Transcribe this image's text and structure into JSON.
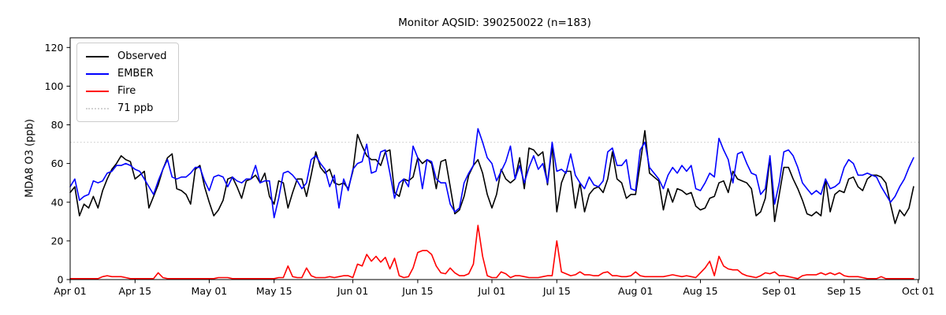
{
  "figure": {
    "title": "Monitor AQSID: 390250022 (n=183)",
    "ylabel": "MDA8 O3 (ppb)"
  },
  "chart_data": {
    "type": "line",
    "title": "Monitor AQSID: 390250022 (n=183)",
    "xlabel": "",
    "ylabel": "MDA8 O3 (ppb)",
    "ylim": [
      0,
      125
    ],
    "yticks": [
      0,
      20,
      40,
      60,
      80,
      100,
      120
    ],
    "grid": false,
    "legend_position": "upper-left",
    "n_points": 183,
    "x_unit": "daily values, day 0 = Apr 01",
    "xticks": [
      {
        "day": 0,
        "label": "Apr 01"
      },
      {
        "day": 14,
        "label": "Apr 15"
      },
      {
        "day": 30,
        "label": "May 01"
      },
      {
        "day": 44,
        "label": "May 15"
      },
      {
        "day": 61,
        "label": "Jun 01"
      },
      {
        "day": 75,
        "label": "Jun 15"
      },
      {
        "day": 91,
        "label": "Jul 01"
      },
      {
        "day": 105,
        "label": "Jul 15"
      },
      {
        "day": 122,
        "label": "Aug 01"
      },
      {
        "day": 136,
        "label": "Aug 15"
      },
      {
        "day": 153,
        "label": "Sep 01"
      },
      {
        "day": 167,
        "label": "Sep 15"
      },
      {
        "day": 183,
        "label": "Oct 01"
      }
    ],
    "threshold_line": {
      "label": "71 ppb",
      "value": 71,
      "color": "#d3d3d3",
      "linestyle": "dotted"
    },
    "series": [
      {
        "name": "Observed",
        "color": "#000000",
        "values": [
          45,
          48,
          33,
          39,
          37,
          43,
          37,
          46,
          52,
          57,
          60,
          64,
          62,
          61,
          52,
          54,
          56,
          37,
          43,
          49,
          57,
          63,
          65,
          47,
          46,
          44,
          39,
          57,
          59,
          48,
          40,
          33,
          36,
          41,
          52,
          53,
          48,
          42,
          51,
          52,
          54,
          50,
          55,
          43,
          39,
          51,
          50,
          37,
          45,
          52,
          52,
          43,
          54,
          66,
          58,
          55,
          57,
          50,
          49,
          50,
          47,
          56,
          75,
          69,
          64,
          62,
          62,
          59,
          66,
          67,
          45,
          43,
          52,
          51,
          53,
          63,
          60,
          62,
          60,
          47,
          61,
          62,
          48,
          34,
          36,
          43,
          54,
          59,
          62,
          55,
          44,
          37,
          44,
          57,
          52,
          50,
          52,
          63,
          47,
          68,
          67,
          64,
          66,
          49,
          69,
          35,
          50,
          56,
          56,
          37,
          50,
          35,
          44,
          47,
          48,
          45,
          52,
          66,
          52,
          50,
          42,
          44,
          44,
          60,
          77,
          55,
          53,
          51,
          36,
          47,
          40,
          47,
          46,
          44,
          45,
          38,
          36,
          37,
          42,
          43,
          50,
          51,
          45,
          56,
          52,
          51,
          50,
          47,
          33,
          35,
          42,
          63,
          30,
          44,
          58,
          58,
          52,
          47,
          41,
          34,
          33,
          35,
          33,
          52,
          35,
          44,
          46,
          45,
          52,
          53,
          48,
          46,
          52,
          54,
          54,
          53,
          50,
          39,
          29,
          36,
          33,
          37,
          48
        ]
      },
      {
        "name": "EMBER",
        "color": "#0000ff",
        "values": [
          48,
          52,
          41,
          43,
          44,
          51,
          50,
          51,
          55,
          56,
          59,
          59,
          60,
          59,
          57,
          56,
          52,
          48,
          44,
          51,
          57,
          62,
          53,
          52,
          53,
          53,
          55,
          58,
          58,
          51,
          46,
          53,
          54,
          53,
          48,
          53,
          51,
          50,
          52,
          52,
          59,
          50,
          51,
          51,
          32,
          42,
          55,
          56,
          54,
          51,
          47,
          50,
          62,
          64,
          60,
          57,
          48,
          54,
          37,
          52,
          46,
          57,
          60,
          61,
          70,
          55,
          56,
          66,
          67,
          55,
          42,
          50,
          52,
          48,
          69,
          63,
          47,
          62,
          61,
          52,
          50,
          50,
          39,
          35,
          37,
          50,
          55,
          59,
          78,
          71,
          63,
          60,
          51,
          56,
          61,
          69,
          52,
          59,
          50,
          58,
          64,
          57,
          60,
          50,
          71,
          56,
          57,
          55,
          65,
          54,
          50,
          47,
          53,
          49,
          48,
          51,
          66,
          68,
          59,
          59,
          62,
          47,
          46,
          67,
          71,
          58,
          55,
          52,
          47,
          54,
          58,
          55,
          59,
          56,
          59,
          47,
          46,
          50,
          55,
          53,
          73,
          67,
          62,
          50,
          65,
          66,
          60,
          55,
          54,
          44,
          47,
          64,
          39,
          50,
          66,
          67,
          64,
          58,
          50,
          47,
          44,
          46,
          44,
          52,
          47,
          48,
          50,
          58,
          62,
          60,
          54,
          54,
          55,
          54,
          53,
          48,
          44,
          40,
          43,
          48,
          52,
          58,
          63
        ]
      },
      {
        "name": "Fire",
        "color": "#ff0000",
        "values": [
          0.5,
          0.5,
          0.5,
          0.5,
          0.5,
          0.5,
          0.5,
          1.5,
          2,
          1.5,
          1.5,
          1.5,
          1,
          0.5,
          0.5,
          0.5,
          0.5,
          0.5,
          0.5,
          3.5,
          1,
          0.5,
          0.5,
          0.5,
          0.5,
          0.5,
          0.5,
          0.5,
          0.5,
          0.5,
          0.5,
          0.5,
          1,
          1,
          1,
          0.5,
          0.5,
          0.5,
          0.5,
          0.5,
          0.5,
          0.5,
          0.5,
          0.5,
          0.5,
          1,
          1,
          7,
          1.5,
          1,
          1,
          6,
          2,
          1,
          1,
          1,
          1.5,
          1,
          1.5,
          2,
          2,
          1,
          8,
          7,
          13,
          9.5,
          12,
          9,
          11.5,
          5.5,
          11,
          2,
          1,
          1.5,
          6,
          14,
          15,
          15,
          13,
          7,
          3.5,
          3,
          6,
          3.5,
          2,
          2,
          3,
          8,
          28,
          12,
          2,
          1,
          1,
          4,
          3,
          1,
          2,
          2,
          1.5,
          1,
          1,
          1,
          1.5,
          2,
          2,
          20,
          4,
          3,
          2,
          2.5,
          4,
          2.5,
          2.5,
          2,
          2,
          3.5,
          4,
          2,
          2,
          1.5,
          1.5,
          2,
          4,
          2,
          1.5,
          1.5,
          1.5,
          1.5,
          1.5,
          2,
          2.5,
          2,
          1.5,
          2,
          1.5,
          1,
          3.5,
          6,
          9.5,
          2,
          12,
          7,
          5.5,
          5,
          5,
          3,
          2,
          1.5,
          1,
          2,
          3.5,
          3,
          4,
          2,
          2,
          1.5,
          1,
          0.5,
          2,
          2.5,
          2.5,
          2.5,
          3.5,
          2.5,
          3.5,
          2.5,
          3.5,
          2,
          1.5,
          1.5,
          1.5,
          1,
          0.5,
          0.5,
          0.5,
          1.5,
          0.5,
          0.5,
          0.5,
          0.5,
          0.5,
          0.5,
          0.5
        ]
      }
    ]
  }
}
